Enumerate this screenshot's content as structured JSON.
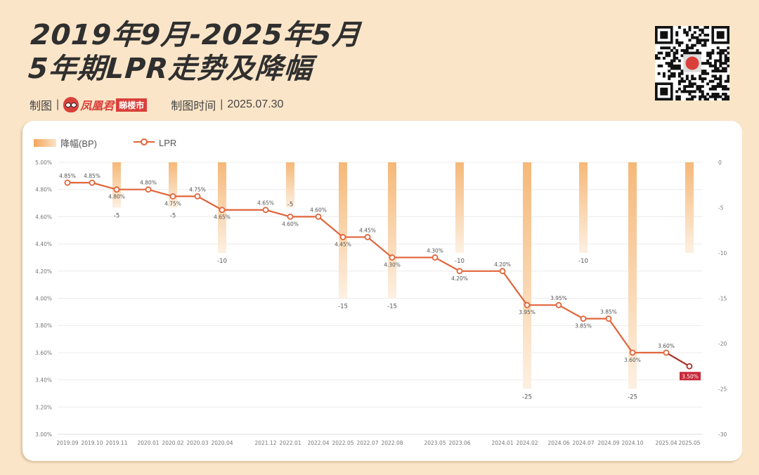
{
  "header": {
    "title_line1": "2019年9月-2025年5月",
    "title_line2": "5年期LPR走势及降幅",
    "credit_label": "制图",
    "credit_separator": "|",
    "brand_name": "凤凰君",
    "brand_tag": "睇楼市",
    "time_label": "制图时间",
    "time_value": "2025.07.30"
  },
  "qr_code": {
    "icon": "qr-code-icon"
  },
  "legend": {
    "bar_label": "降幅(BP)",
    "line_label": "LPR"
  },
  "colors": {
    "background": "#fbe5c8",
    "line": "#e0643a",
    "bar_top": "#f5b878",
    "bar_bottom": "#fdf0e2",
    "highlight": "#c8283a",
    "title": "#2f2f2f"
  },
  "chart_data": {
    "type": "bar+line",
    "title": "2019年9月-2025年5月 5年期LPR走势及降幅",
    "categories": [
      "2019.09",
      "2019.10",
      "2019.11",
      "2020.01",
      "2020.02",
      "2020.03",
      "2020.04",
      "2021.12",
      "2022.01",
      "2022.04",
      "2022.05",
      "2022.07",
      "2022.08",
      "2023.05",
      "2023.06",
      "2024.01",
      "2024.02",
      "2024.06",
      "2024.07",
      "2024.09",
      "2024.10",
      "2025.04",
      "2025.05"
    ],
    "series": [
      {
        "name": "LPR",
        "type": "line",
        "axis": "left",
        "unit": "%",
        "values": [
          4.85,
          4.85,
          4.8,
          4.8,
          4.75,
          4.75,
          4.65,
          4.65,
          4.6,
          4.6,
          4.45,
          4.45,
          4.3,
          4.3,
          4.2,
          4.2,
          3.95,
          3.95,
          3.85,
          3.85,
          3.6,
          3.6,
          3.5
        ],
        "labels": [
          "4.85%",
          "4.85%",
          "4.80%",
          "4.80%",
          "4.75%",
          "4.75%",
          "4.65%",
          "4.65%",
          "4.60%",
          "4.60%",
          "4.45%",
          "4.45%",
          "4.30%",
          "4.30%",
          "4.20%",
          "4.20%",
          "3.95%",
          "3.95%",
          "3.85%",
          "3.85%",
          "3.60%",
          "3.60%",
          "3.50%"
        ]
      },
      {
        "name": "降幅(BP)",
        "type": "bar",
        "axis": "right",
        "values": [
          null,
          null,
          -5,
          null,
          -5,
          null,
          -10,
          null,
          -5,
          null,
          -15,
          null,
          -15,
          null,
          -10,
          null,
          -25,
          null,
          -10,
          null,
          -25,
          null,
          -10
        ],
        "labels": [
          "",
          "",
          "-5",
          "",
          "-5",
          "",
          "-10",
          "",
          "-5",
          "",
          "-15",
          "",
          "-15",
          "",
          "-10",
          "",
          "-25",
          "",
          "-10",
          "",
          "-25",
          "",
          ""
        ]
      }
    ],
    "y_left": {
      "ticks": [
        "5.00%",
        "4.80%",
        "4.60%",
        "4.40%",
        "4.20%",
        "4.00%",
        "3.80%",
        "3.60%",
        "3.40%",
        "3.20%",
        "3.00%"
      ],
      "range": [
        3.0,
        5.0
      ]
    },
    "y_right": {
      "ticks": [
        "0",
        "-5",
        "-10",
        "-15",
        "-20",
        "-25",
        "-30"
      ],
      "range": [
        -30,
        0
      ]
    },
    "xlabel": "",
    "ylabel": "",
    "grid": true,
    "legend_position": "top-left",
    "highlight_last": "3.50%"
  }
}
